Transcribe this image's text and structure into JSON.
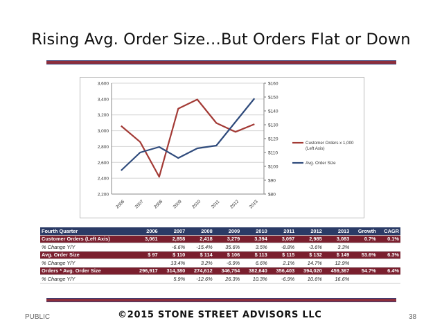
{
  "slide": {
    "title": "Rising Avg. Order Size…But Orders Flat or Down",
    "footer_left": "PUBLIC",
    "footer_center": "©2015 STONE STREET ADVISORS LLC",
    "page_number": "38"
  },
  "colors": {
    "customer_orders_line": "#a33a35",
    "avg_order_line": "#2f4b7c",
    "header_fill": "#2b3b66",
    "dark_row_fill": "#7a1f2e"
  },
  "chart_data": {
    "type": "line",
    "categories": [
      "2006",
      "2007",
      "2008",
      "2009",
      "2010",
      "2011",
      "2012",
      "2013"
    ],
    "series": [
      {
        "name": "Customer Orders x 1,000 (Left Axis)",
        "axis": "left",
        "values": [
          3061,
          2858,
          2418,
          3279,
          3394,
          3097,
          2985,
          3083
        ]
      },
      {
        "name": "Avg. Order Size",
        "axis": "right",
        "values": [
          97,
          110,
          114,
          106,
          113,
          115,
          132,
          149
        ]
      }
    ],
    "left_axis": {
      "ylim": [
        2200,
        3600
      ],
      "ticks": [
        "2,200",
        "2,400",
        "2,600",
        "2,800",
        "3,000",
        "3,200",
        "3,400",
        "3,600"
      ]
    },
    "right_axis": {
      "ylim": [
        80,
        160
      ],
      "ticks": [
        "$80",
        "$90",
        "$100",
        "$110",
        "$120",
        "$130",
        "$140",
        "$150",
        "$160"
      ]
    },
    "grid": true,
    "legend_position": "right"
  },
  "table": {
    "header": [
      "Fourth Quarter",
      "2006",
      "2007",
      "2008",
      "2009",
      "2010",
      "2011",
      "2012",
      "2013",
      "Growth",
      "CAGR"
    ],
    "rows": [
      {
        "style": "dk",
        "cells": [
          "Customer Orders (Left Axis)",
          "3,061",
          "2,858",
          "2,418",
          "3,279",
          "3,394",
          "3,097",
          "2,985",
          "3,083",
          "0.7%",
          "0.1%"
        ]
      },
      {
        "style": "pc",
        "cells": [
          "% Change Y/Y",
          "",
          "-6.6%",
          "-15.4%",
          "35.6%",
          "3.5%",
          "-8.8%",
          "-3.6%",
          "3.3%",
          "",
          ""
        ]
      },
      {
        "style": "dk",
        "cells": [
          "Avg. Order Size",
          "$      97",
          "$     110",
          "$     114",
          "$     106",
          "$     113",
          "$     115",
          "$     132",
          "$     149",
          "53.6%",
          "6.3%"
        ]
      },
      {
        "style": "pc",
        "cells": [
          "% Change Y/Y",
          "",
          "13.4%",
          "3.2%",
          "-6.9%",
          "6.6%",
          "2.1%",
          "14.7%",
          "12.9%",
          "",
          ""
        ]
      },
      {
        "style": "dk",
        "cells": [
          "Orders * Avg. Order Size",
          "296,917",
          "314,380",
          "274,612",
          "346,754",
          "382,640",
          "356,403",
          "394,020",
          "459,367",
          "54.7%",
          "6.4%"
        ]
      },
      {
        "style": "pc",
        "cells": [
          "% Change Y/Y",
          "",
          "5.9%",
          "-12.6%",
          "26.3%",
          "10.3%",
          "-6.9%",
          "10.6%",
          "16.6%",
          "",
          ""
        ]
      }
    ]
  }
}
